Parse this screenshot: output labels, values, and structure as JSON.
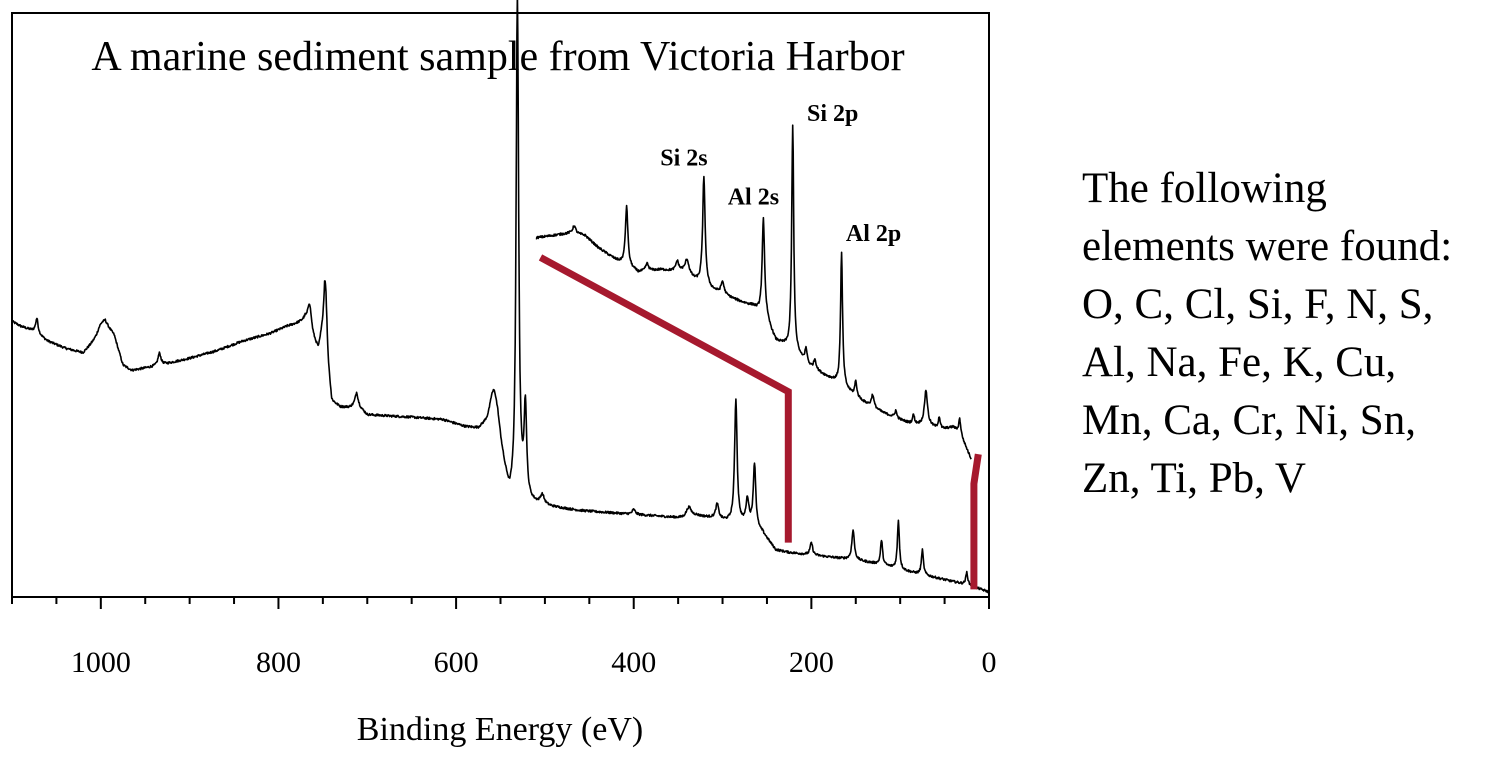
{
  "chart_data": {
    "type": "line",
    "title": "A marine sediment sample from Victoria Harbor",
    "xlabel": "Binding Energy (eV)",
    "ylabel": "",
    "xlim": [
      1100,
      0
    ],
    "x_reversed": true,
    "ylim": [
      0,
      100
    ],
    "x_ticks": [
      1000,
      800,
      600,
      400,
      200,
      0
    ],
    "x_tick_labels": [
      "1000",
      "800",
      "600",
      "400",
      "200",
      "0"
    ],
    "grid": false,
    "series": [
      {
        "role": "survey spectrum",
        "baseline": [
          [
            1100,
            55
          ],
          [
            1090,
            54
          ],
          [
            1075,
            53
          ],
          [
            1060,
            51
          ],
          [
            1040,
            49.5
          ],
          [
            1020,
            48.5
          ],
          [
            1005,
            51
          ],
          [
            995,
            54
          ],
          [
            985,
            52
          ],
          [
            975,
            46
          ],
          [
            965,
            45
          ],
          [
            950,
            45.5
          ],
          [
            935,
            46
          ],
          [
            900,
            47.5
          ],
          [
            870,
            49
          ],
          [
            840,
            51
          ],
          [
            810,
            52.5
          ],
          [
            790,
            54
          ],
          [
            780,
            54.5
          ],
          [
            770,
            55
          ],
          [
            765,
            52.5
          ],
          [
            755,
            49
          ],
          [
            748,
            55
          ],
          [
            744,
            45
          ],
          [
            740,
            38.5
          ],
          [
            730,
            37.5
          ],
          [
            720,
            37.5
          ],
          [
            712,
            38
          ],
          [
            700,
            36
          ],
          [
            650,
            35.5
          ],
          [
            615,
            35
          ],
          [
            590,
            33.5
          ],
          [
            575,
            33
          ],
          [
            565,
            34
          ],
          [
            560,
            35.5
          ],
          [
            553,
            33
          ],
          [
            546,
            25
          ],
          [
            540,
            19
          ],
          [
            535,
            18
          ],
          [
            530,
            19
          ],
          [
            525,
            19
          ],
          [
            518,
            18
          ],
          [
            505,
            17.5
          ],
          [
            460,
            16.5
          ],
          [
            420,
            16
          ],
          [
            380,
            15.5
          ],
          [
            345,
            15
          ],
          [
            330,
            15.5
          ],
          [
            310,
            15
          ],
          [
            300,
            14.5
          ],
          [
            285,
            14
          ],
          [
            270,
            13.5
          ],
          [
            255,
            12
          ],
          [
            240,
            8.5
          ],
          [
            225,
            8
          ],
          [
            200,
            7.5
          ],
          [
            175,
            7
          ],
          [
            150,
            6.5
          ],
          [
            120,
            5.5
          ],
          [
            100,
            4.5
          ],
          [
            75,
            3.5
          ],
          [
            50,
            2.5
          ],
          [
            25,
            1.5
          ],
          [
            0,
            0
          ]
        ],
        "peaks": [
          [
            1072,
            3,
            2.5
          ],
          [
            1000,
            2,
            10
          ],
          [
            934,
            2.5,
            3
          ],
          [
            765,
            6,
            4
          ],
          [
            747,
            10,
            3
          ],
          [
            712,
            2.5,
            3
          ],
          [
            557,
            6,
            7
          ],
          [
            531,
            102,
            2.5
          ],
          [
            522,
            18,
            2.5
          ],
          [
            503,
            2,
            4
          ],
          [
            400,
            1,
            3
          ],
          [
            338,
            2,
            5
          ],
          [
            306,
            3,
            3
          ],
          [
            285,
            25,
            2.5
          ],
          [
            272,
            5,
            3
          ],
          [
            264,
            13,
            2.5
          ],
          [
            200,
            2.5,
            2.5
          ],
          [
            153,
            6,
            2.5
          ],
          [
            121,
            5,
            2
          ],
          [
            102,
            10,
            2
          ],
          [
            75,
            5,
            2
          ],
          [
            25,
            2.5,
            2
          ]
        ]
      },
      {
        "role": "magnified inset 500-20 eV",
        "baseline": [
          [
            510,
            72
          ],
          [
            490,
            72.5
          ],
          [
            470,
            73
          ],
          [
            455,
            72.5
          ],
          [
            440,
            70
          ],
          [
            420,
            67.5
          ],
          [
            395,
            65
          ],
          [
            370,
            65.5
          ],
          [
            345,
            65
          ],
          [
            320,
            62
          ],
          [
            300,
            60.5
          ],
          [
            280,
            59
          ],
          [
            265,
            58
          ],
          [
            250,
            55
          ],
          [
            240,
            51
          ],
          [
            230,
            50
          ],
          [
            215,
            48
          ],
          [
            205,
            46
          ],
          [
            190,
            44.5
          ],
          [
            175,
            43
          ],
          [
            160,
            41
          ],
          [
            140,
            38.5
          ],
          [
            120,
            36.5
          ],
          [
            100,
            35
          ],
          [
            85,
            34
          ],
          [
            70,
            34
          ],
          [
            55,
            33
          ],
          [
            40,
            33.5
          ],
          [
            32,
            32
          ],
          [
            20,
            27
          ]
        ],
        "peaks": [
          [
            467,
            1.5,
            3
          ],
          [
            408,
            12,
            2.5
          ],
          [
            385,
            1.5,
            3
          ],
          [
            351,
            2,
            3
          ],
          [
            340,
            3,
            4
          ],
          [
            321,
            22,
            2.5
          ],
          [
            300,
            2.5,
            3
          ],
          [
            254,
            20,
            2.5
          ],
          [
            221,
            46,
            2
          ],
          [
            206,
            3,
            2.5
          ],
          [
            196,
            2,
            2.5
          ],
          [
            166,
            27,
            2
          ],
          [
            150,
            3,
            2
          ],
          [
            131,
            2.5,
            2.5
          ],
          [
            105,
            1.5,
            2
          ],
          [
            85,
            2,
            2
          ],
          [
            71,
            7,
            3
          ],
          [
            56,
            2.5,
            2
          ],
          [
            33,
            3,
            2
          ]
        ]
      }
    ],
    "annotations": [
      {
        "text": "Si 2s",
        "x": 321
      },
      {
        "text": "Al 2s",
        "x": 254
      },
      {
        "text": "Si 2p",
        "x": 221
      },
      {
        "text": "Al 2p",
        "x": 166
      }
    ],
    "inset_connector_range": [
      226,
      17
    ],
    "colors": {
      "line": "#000000",
      "connector": "#a6192e"
    }
  },
  "side_note": {
    "lines": [
      "The following",
      "elements were found:",
      "O, C, Cl, Si, F, N, S,",
      "Al, Na, Fe, K, Cu,",
      "Mn, Ca, Cr, Ni, Sn,",
      "Zn, Ti, Pb, V"
    ]
  }
}
